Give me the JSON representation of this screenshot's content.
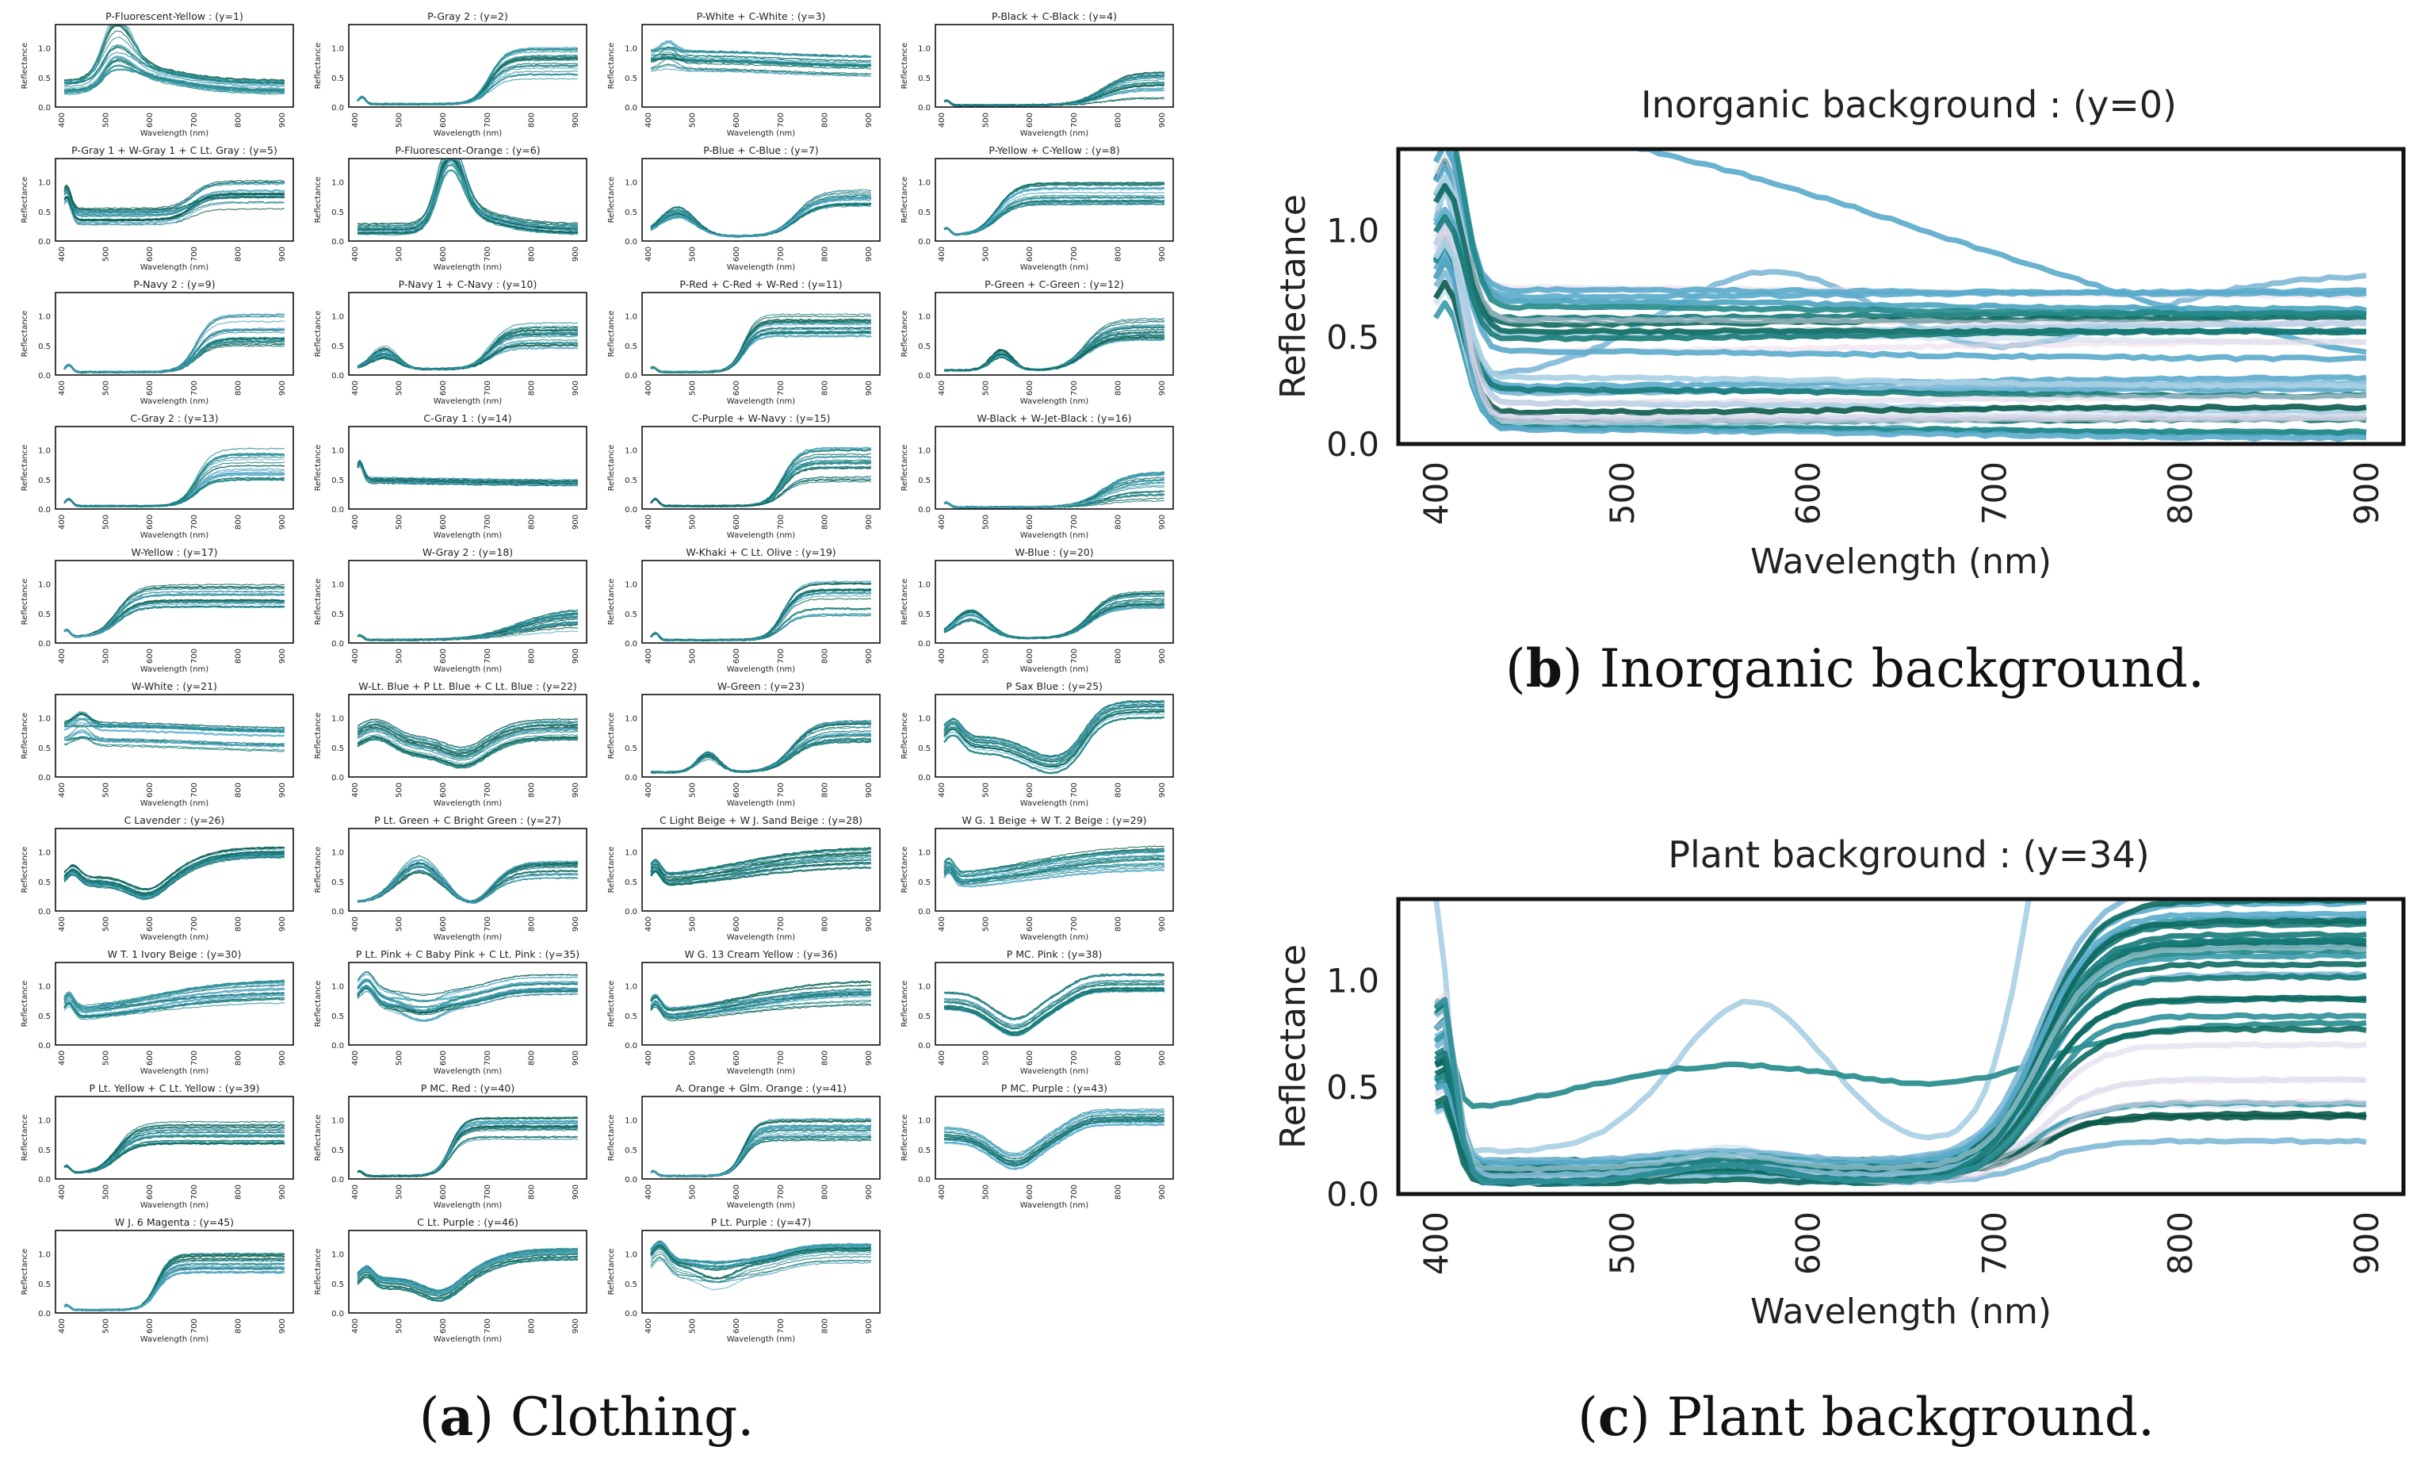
{
  "common": {
    "xlabel": "Wavelength (nm)",
    "ylabel": "Reflectance",
    "x_ticks": [
      400,
      500,
      600,
      700,
      800,
      900
    ],
    "y_ticks": [
      0.0,
      0.5,
      1.0
    ]
  },
  "captions": {
    "a": {
      "letter": "a",
      "text": ") Clothing."
    },
    "b": {
      "letter": "b",
      "text": ") Inorganic background."
    },
    "c": {
      "letter": "c",
      "text": ") Plant background."
    }
  },
  "colors": [
    "#0b5a4a",
    "#0e6a60",
    "#167a78",
    "#238a8a",
    "#2e8f99",
    "#3a9aaa",
    "#4aa3c0",
    "#5aabcb",
    "#7fb9d6",
    "#a9cfe3",
    "#c6dced",
    "#d8d4e8",
    "#ead8ea"
  ],
  "chart_data": [
    {
      "type": "line",
      "title": "Inorganic background : (y=0)",
      "xlabel": "Wavelength (nm)",
      "ylabel": "Reflectance",
      "xlim": [
        380,
        920
      ],
      "ylim": [
        0,
        1.38
      ],
      "curve_count": 32,
      "grid": false
    },
    {
      "type": "line",
      "title": "Plant background : (y=34)",
      "xlabel": "Wavelength (nm)",
      "ylabel": "Reflectance",
      "xlim": [
        380,
        920
      ],
      "ylim": [
        0,
        1.38
      ],
      "curve_count": 34,
      "grid": false
    },
    {
      "type": "line",
      "grid": false,
      "xlim": [
        380,
        920
      ],
      "ylim": [
        0,
        1.4
      ],
      "panels": [
        {
          "title": "P-Fluorescent-Yellow : (y=1)",
          "profile": "fyellow"
        },
        {
          "title": "P-Gray 2 : (y=2)",
          "profile": "rise"
        },
        {
          "title": "P-White + C-White : (y=3)",
          "profile": "white"
        },
        {
          "title": "P-Black + C-Black : (y=4)",
          "profile": "dark"
        },
        {
          "title": "P-Gray 1 + W-Gray 1 + C Lt. Gray : (y=5)",
          "profile": "grayflat"
        },
        {
          "title": "P-Fluorescent-Orange : (y=6)",
          "profile": "forange"
        },
        {
          "title": "P-Blue + C-Blue : (y=7)",
          "profile": "blue"
        },
        {
          "title": "P-Yellow + C-Yellow : (y=8)",
          "profile": "yellow"
        },
        {
          "title": "P-Navy 2 : (y=9)",
          "profile": "rise"
        },
        {
          "title": "P-Navy 1 + C-Navy : (y=10)",
          "profile": "navy"
        },
        {
          "title": "P-Red + C-Red + W-Red : (y=11)",
          "profile": "red"
        },
        {
          "title": "P-Green + C-Green : (y=12)",
          "profile": "green"
        },
        {
          "title": "C-Gray 2 : (y=13)",
          "profile": "rise"
        },
        {
          "title": "C-Gray 1 : (y=14)",
          "profile": "flat"
        },
        {
          "title": "C-Purple + W-Navy : (y=15)",
          "profile": "rise"
        },
        {
          "title": "W-Black + W-Jet-Black : (y=16)",
          "profile": "dark"
        },
        {
          "title": "W-Yellow : (y=17)",
          "profile": "yellow"
        },
        {
          "title": "W-Gray 2 : (y=18)",
          "profile": "darkslow"
        },
        {
          "title": "W-Khaki + C Lt. Olive : (y=19)",
          "profile": "rise"
        },
        {
          "title": "W-Blue : (y=20)",
          "profile": "blue"
        },
        {
          "title": "W-White : (y=21)",
          "profile": "white"
        },
        {
          "title": "W-Lt. Blue + P Lt. Blue + C Lt. Blue : (y=22)",
          "profile": "ltblue"
        },
        {
          "title": "W-Green : (y=23)",
          "profile": "green"
        },
        {
          "title": "P Sax Blue : (y=25)",
          "profile": "sax"
        },
        {
          "title": "C Lavender : (y=26)",
          "profile": "lavender"
        },
        {
          "title": "P Lt. Green + C Bright Green : (y=27)",
          "profile": "ltgreen"
        },
        {
          "title": "C Light Beige + W J. Sand Beige : (y=28)",
          "profile": "beige"
        },
        {
          "title": "W G. 1 Beige + W T. 2 Beige : (y=29)",
          "profile": "beige"
        },
        {
          "title": "W T. 1 Ivory Beige : (y=30)",
          "profile": "beige"
        },
        {
          "title": "P Lt. Pink + C Baby Pink + C Lt. Pink : (y=35)",
          "profile": "pink"
        },
        {
          "title": "W G. 13 Cream Yellow : (y=36)",
          "profile": "beige"
        },
        {
          "title": "P MC. Pink : (y=38)",
          "profile": "mcpink"
        },
        {
          "title": "P Lt. Yellow + C Lt. Yellow : (y=39)",
          "profile": "yellow"
        },
        {
          "title": "P MC. Red : (y=40)",
          "profile": "red"
        },
        {
          "title": "A. Orange + Glm. Orange : (y=41)",
          "profile": "red"
        },
        {
          "title": "P MC. Purple : (y=43)",
          "profile": "mcpink"
        },
        {
          "title": "W J. 6 Magenta : (y=45)",
          "profile": "red"
        },
        {
          "title": "C Lt. Purple : (y=46)",
          "profile": "lavender"
        },
        {
          "title": "P Lt. Purple : (y=47)",
          "profile": "pink"
        }
      ]
    }
  ]
}
